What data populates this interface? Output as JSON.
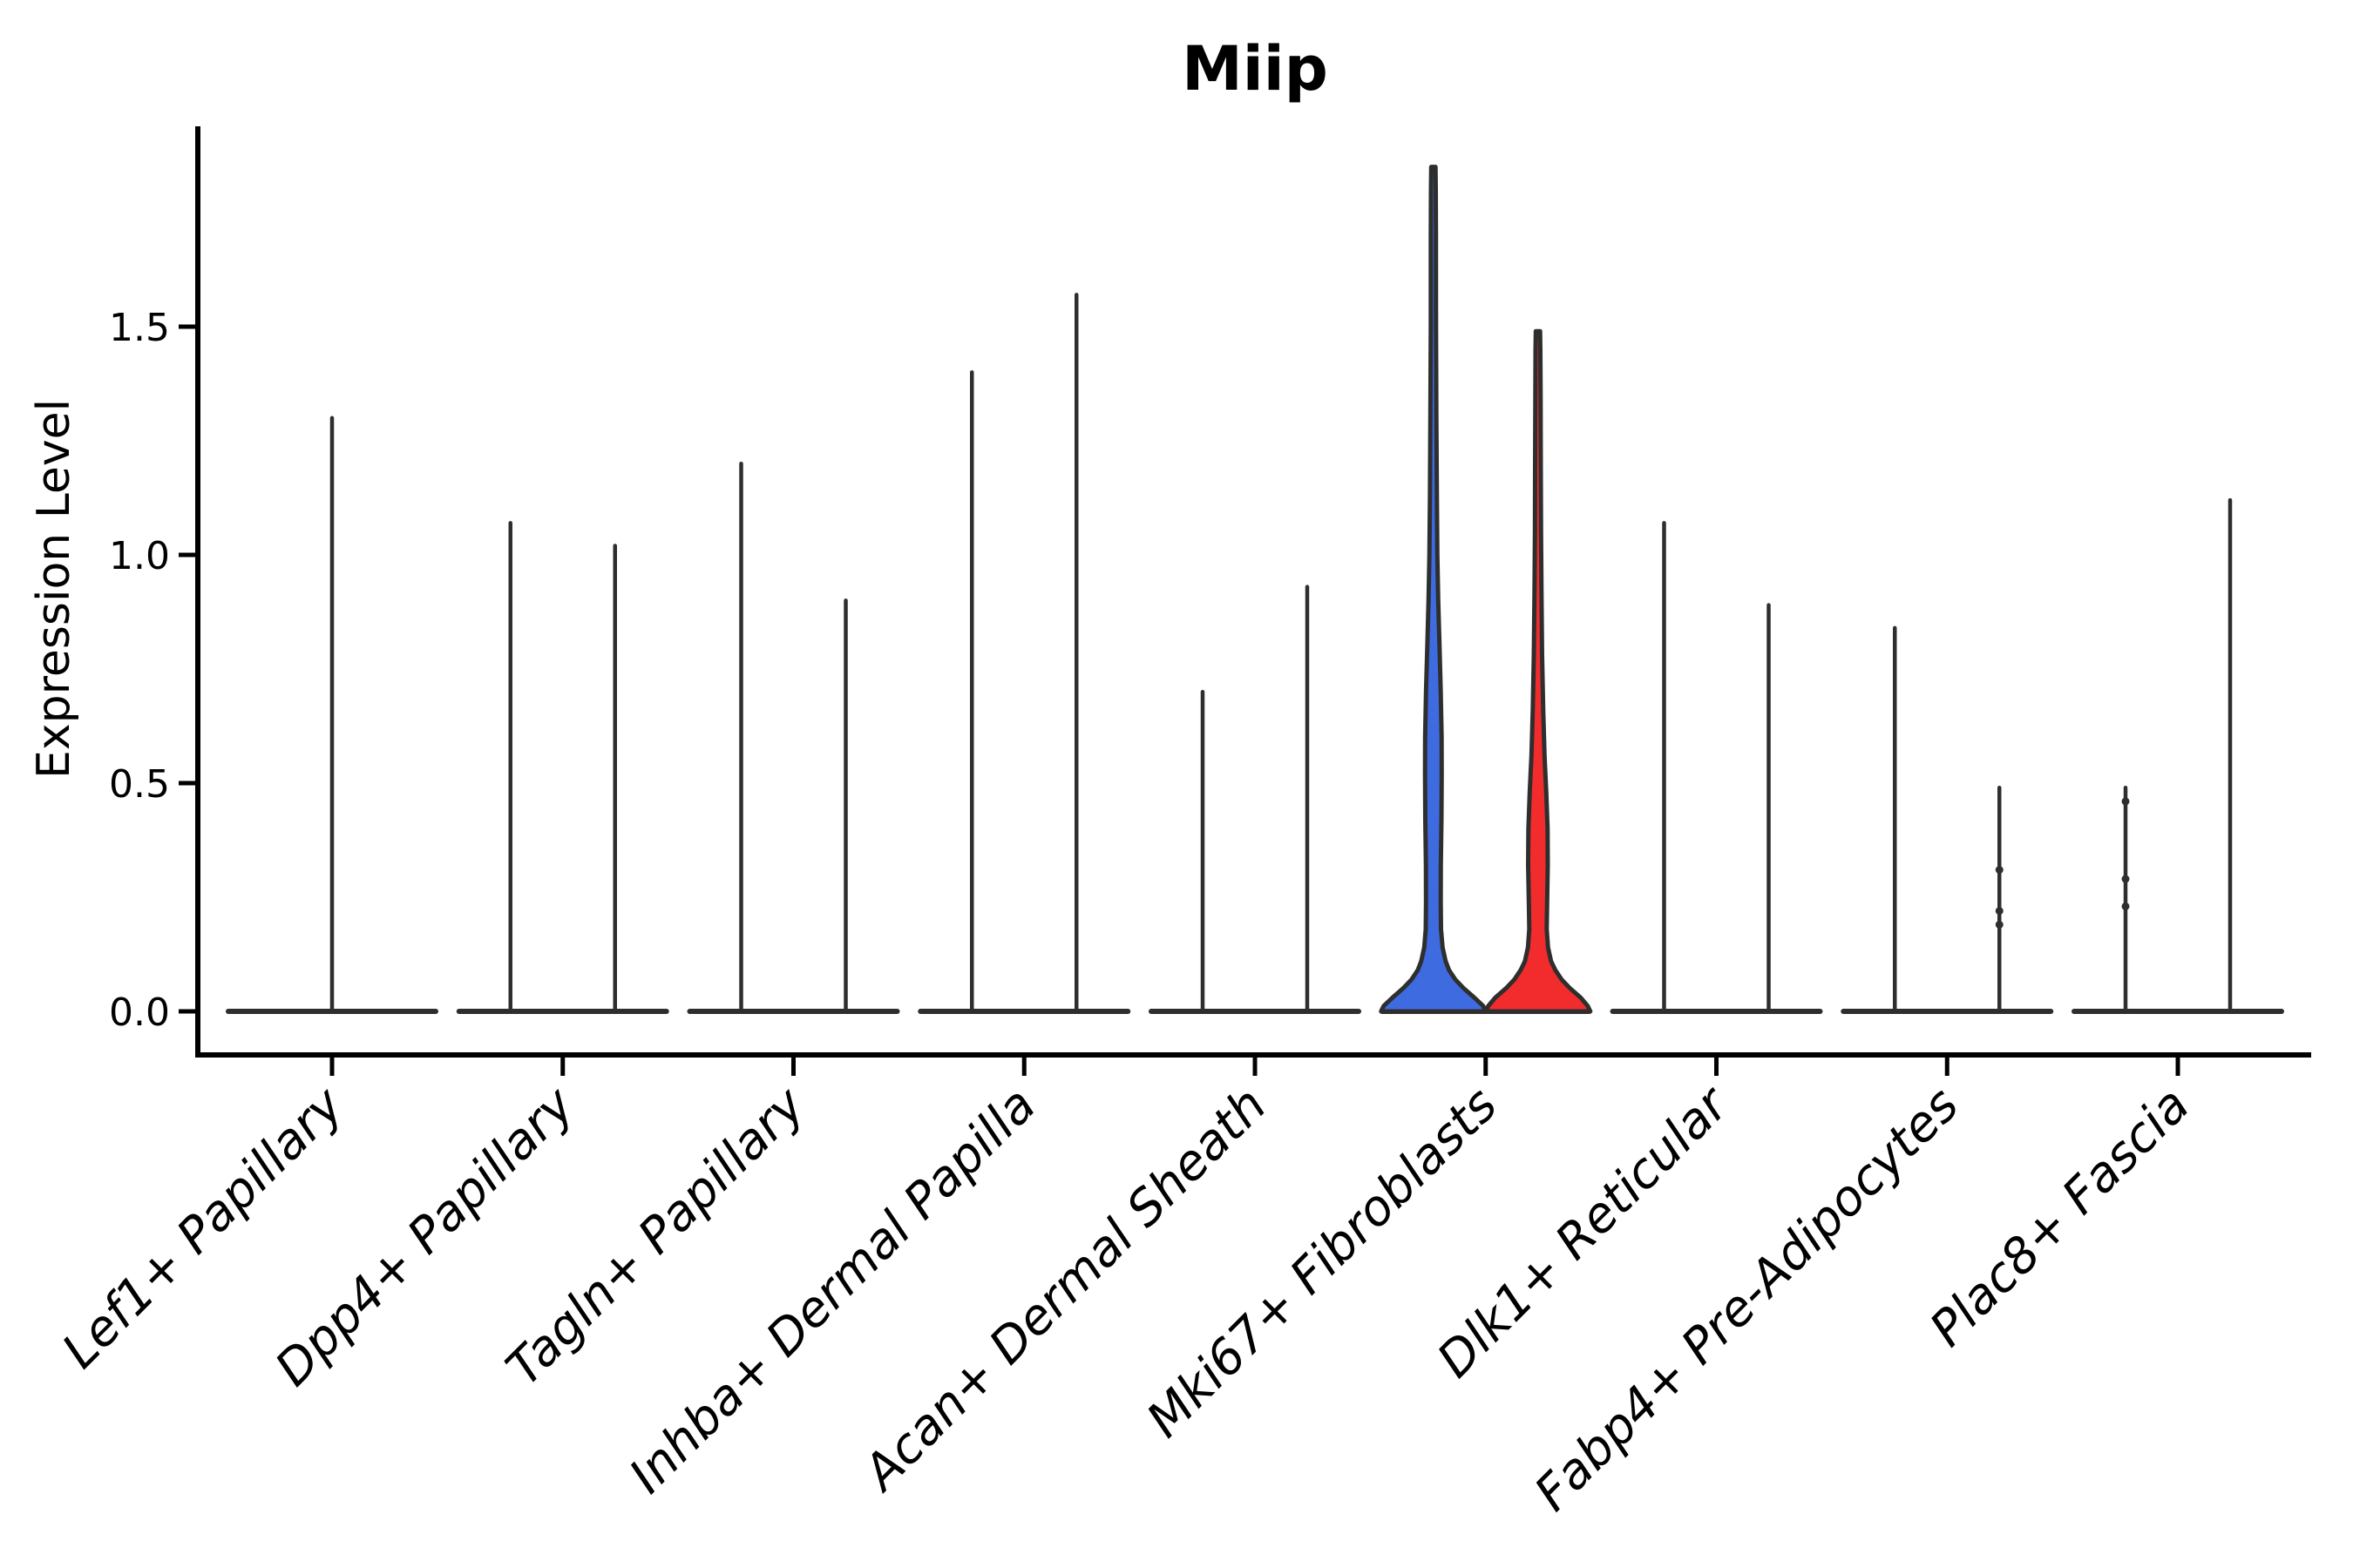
{
  "figure": {
    "title": "Miip",
    "ylabel": "Expression Level",
    "background": "#ffffff"
  },
  "chart_data": {
    "type": "violin",
    "title": "Miip",
    "xlabel": "",
    "ylabel": "Expression Level",
    "ylim": [
      0,
      1.94
    ],
    "yticks": [
      "0.0",
      "0.5",
      "1.0",
      "1.5"
    ],
    "grid": false,
    "legend": "none",
    "style_notes": "Seurat-style split violin plot; classic theme with left+bottom spines only; most violins collapse to thin vertical spikes at near-zero width; only Mki67+ Fibroblasts shows visibly filled blue/red split violins",
    "colors": {
      "violin_outline": "#2E2E2E",
      "axis": "#000000",
      "split_left_fill": "#3E6CE0",
      "split_right_fill": "#F22C2C"
    },
    "categories": [
      "Lef1+ Papillary",
      "Dpp4+ Papillary",
      "Tagln+ Papillary",
      "Inhba+ Dermal Papilla",
      "Acan+ Dermal Sheath",
      "Mki67+ Fibroblasts",
      "Dlk1+ Reticular",
      "Fabp4+ Pre-Adipocytes",
      "Plac8+ Fascia"
    ],
    "violins": [
      {
        "category": "Lef1+ Papillary",
        "items": [
          {
            "pos": "center",
            "style": "spike",
            "max": 1.3
          }
        ]
      },
      {
        "category": "Dpp4+ Papillary",
        "items": [
          {
            "pos": "left",
            "style": "spike",
            "max": 1.07
          },
          {
            "pos": "right",
            "style": "spike",
            "max": 1.02
          }
        ]
      },
      {
        "category": "Tagln+ Papillary",
        "items": [
          {
            "pos": "left",
            "style": "spike",
            "max": 1.2
          },
          {
            "pos": "right",
            "style": "spike",
            "max": 0.9
          }
        ]
      },
      {
        "category": "Inhba+ Dermal Papilla",
        "items": [
          {
            "pos": "left",
            "style": "spike",
            "max": 1.4
          },
          {
            "pos": "right",
            "style": "spike",
            "max": 1.57
          }
        ]
      },
      {
        "category": "Acan+ Dermal Sheath",
        "items": [
          {
            "pos": "left",
            "style": "spike",
            "max": 0.7
          },
          {
            "pos": "right",
            "style": "spike",
            "max": 0.93
          }
        ]
      },
      {
        "category": "Mki67+ Fibroblasts",
        "items": [
          {
            "pos": "left",
            "style": "filled",
            "max": 1.85,
            "fill": "#3E6CE0",
            "profile": "blue"
          },
          {
            "pos": "right",
            "style": "filled",
            "max": 1.49,
            "fill": "#F22C2C",
            "profile": "red"
          }
        ]
      },
      {
        "category": "Dlk1+ Reticular",
        "items": [
          {
            "pos": "left",
            "style": "spike",
            "max": 1.07
          },
          {
            "pos": "right",
            "style": "spike",
            "max": 0.89
          }
        ]
      },
      {
        "category": "Fabp4+ Pre-Adipocytes",
        "items": [
          {
            "pos": "left",
            "style": "spike",
            "max": 0.84
          },
          {
            "pos": "right",
            "style": "spike",
            "max": 0.49,
            "dots": [
              0.31,
              0.22,
              0.19
            ]
          }
        ]
      },
      {
        "category": "Plac8+ Fascia",
        "items": [
          {
            "pos": "left",
            "style": "spike",
            "max": 0.49,
            "dots": [
              0.46,
              0.29,
              0.23
            ]
          },
          {
            "pos": "right",
            "style": "spike",
            "max": 1.12
          }
        ]
      }
    ],
    "profiles": {
      "blue": [
        [
          0,
          60
        ],
        [
          0.012,
          57
        ],
        [
          0.03,
          47
        ],
        [
          0.05,
          35
        ],
        [
          0.07,
          25
        ],
        [
          0.09,
          18
        ],
        [
          0.11,
          14
        ],
        [
          0.14,
          10.5
        ],
        [
          0.18,
          8.8
        ],
        [
          0.24,
          8.4
        ],
        [
          0.32,
          8.6
        ],
        [
          0.42,
          9.2
        ],
        [
          0.52,
          9.6
        ],
        [
          0.6,
          9.4
        ],
        [
          0.7,
          8.4
        ],
        [
          0.8,
          7
        ],
        [
          0.9,
          5.6
        ],
        [
          1.0,
          4.6
        ],
        [
          1.12,
          4
        ],
        [
          1.3,
          3.4
        ],
        [
          1.5,
          3
        ],
        [
          1.7,
          2.9
        ],
        [
          1.8,
          2.7
        ],
        [
          1.85,
          2.4
        ]
      ],
      "red": [
        [
          0,
          60
        ],
        [
          0.012,
          57
        ],
        [
          0.03,
          49
        ],
        [
          0.05,
          37
        ],
        [
          0.07,
          27
        ],
        [
          0.09,
          20
        ],
        [
          0.11,
          15
        ],
        [
          0.14,
          11.5
        ],
        [
          0.18,
          10
        ],
        [
          0.24,
          10.5
        ],
        [
          0.32,
          11.3
        ],
        [
          0.4,
          11
        ],
        [
          0.48,
          9.5
        ],
        [
          0.56,
          7.5
        ],
        [
          0.66,
          6
        ],
        [
          0.78,
          4.8
        ],
        [
          0.92,
          4
        ],
        [
          1.05,
          3.5
        ],
        [
          1.2,
          3.2
        ],
        [
          1.35,
          3
        ],
        [
          1.45,
          2.7
        ],
        [
          1.49,
          2.4
        ]
      ]
    }
  }
}
